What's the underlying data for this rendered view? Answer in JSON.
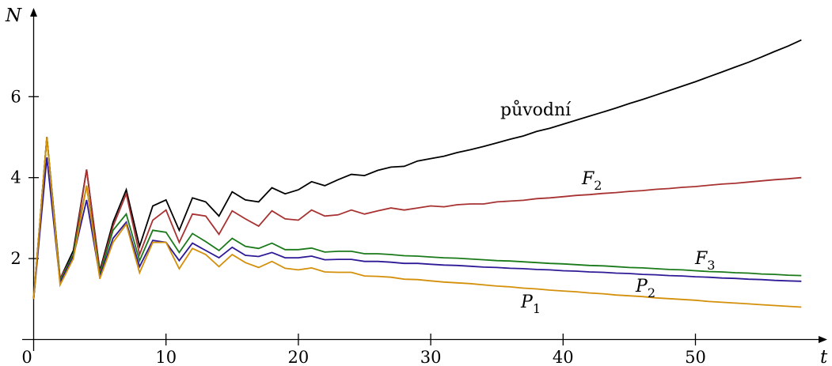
{
  "chart_data": {
    "type": "line",
    "xlabel": "t",
    "ylabel": "N",
    "xlim": [
      0,
      60
    ],
    "ylim": [
      0,
      8.2
    ],
    "x_ticks": [
      0,
      10,
      20,
      30,
      40,
      50
    ],
    "y_ticks": [
      2,
      4,
      6
    ],
    "x_tick_labels": [
      "0",
      "10",
      "20",
      "30",
      "40",
      "50"
    ],
    "y_tick_labels": [
      "2",
      "4",
      "6"
    ],
    "grid": false,
    "series": [
      {
        "name": "původní",
        "label_main": "původní",
        "label_sub": "",
        "label_italic": false,
        "color": "#000000",
        "x": [
          0,
          1,
          2,
          3,
          4,
          5,
          6,
          7,
          8,
          9,
          10,
          11,
          12,
          13,
          14,
          15,
          16,
          17,
          18,
          19,
          20,
          21,
          22,
          23,
          24,
          25,
          26,
          27,
          28,
          29,
          30,
          31,
          32,
          33,
          34,
          35,
          36,
          37,
          38,
          39,
          40,
          41,
          42,
          43,
          44,
          45,
          46,
          47,
          48,
          49,
          50,
          51,
          52,
          53,
          54,
          55,
          56,
          57,
          58
        ],
        "y": [
          1.0,
          5.0,
          1.5,
          2.2,
          4.2,
          1.7,
          2.9,
          3.7,
          2.3,
          3.3,
          3.45,
          2.7,
          3.5,
          3.4,
          3.05,
          3.65,
          3.45,
          3.4,
          3.75,
          3.6,
          3.7,
          3.9,
          3.8,
          3.95,
          4.08,
          4.05,
          4.18,
          4.26,
          4.28,
          4.41,
          4.47,
          4.53,
          4.62,
          4.69,
          4.77,
          4.86,
          4.95,
          5.03,
          5.14,
          5.22,
          5.32,
          5.42,
          5.52,
          5.62,
          5.72,
          5.83,
          5.93,
          6.04,
          6.15,
          6.26,
          6.37,
          6.49,
          6.61,
          6.73,
          6.85,
          6.98,
          7.12,
          7.25,
          7.4
        ]
      },
      {
        "name": "F2",
        "label_main": "F",
        "label_sub": "2",
        "label_italic": true,
        "color": "#a83232",
        "x": [
          0,
          1,
          2,
          3,
          4,
          5,
          6,
          7,
          8,
          9,
          10,
          11,
          12,
          13,
          14,
          15,
          16,
          17,
          18,
          19,
          20,
          21,
          22,
          23,
          24,
          25,
          26,
          27,
          28,
          29,
          30,
          31,
          32,
          33,
          34,
          35,
          36,
          37,
          38,
          39,
          40,
          41,
          42,
          43,
          44,
          45,
          46,
          47,
          48,
          49,
          50,
          51,
          52,
          53,
          54,
          55,
          56,
          57,
          58
        ],
        "y": [
          1.0,
          5.0,
          1.5,
          2.1,
          4.2,
          1.65,
          2.8,
          3.6,
          2.1,
          2.95,
          3.2,
          2.4,
          3.1,
          3.05,
          2.6,
          3.18,
          2.98,
          2.8,
          3.18,
          2.98,
          2.95,
          3.2,
          3.05,
          3.08,
          3.2,
          3.1,
          3.18,
          3.25,
          3.2,
          3.25,
          3.3,
          3.28,
          3.33,
          3.35,
          3.35,
          3.4,
          3.42,
          3.44,
          3.48,
          3.5,
          3.53,
          3.56,
          3.58,
          3.61,
          3.63,
          3.66,
          3.68,
          3.71,
          3.73,
          3.76,
          3.78,
          3.81,
          3.84,
          3.86,
          3.89,
          3.92,
          3.95,
          3.97,
          4.0
        ]
      },
      {
        "name": "F3",
        "label_main": "F",
        "label_sub": "3",
        "label_italic": true,
        "color": "#1a7a1a",
        "x": [
          0,
          1,
          2,
          3,
          4,
          5,
          6,
          7,
          8,
          9,
          10,
          11,
          12,
          13,
          14,
          15,
          16,
          17,
          18,
          19,
          20,
          21,
          22,
          23,
          24,
          25,
          26,
          27,
          28,
          29,
          30,
          31,
          32,
          33,
          34,
          35,
          36,
          37,
          38,
          39,
          40,
          41,
          42,
          43,
          44,
          45,
          46,
          47,
          48,
          49,
          50,
          51,
          52,
          53,
          54,
          55,
          56,
          57,
          58
        ],
        "y": [
          1.0,
          5.0,
          1.45,
          2.1,
          3.8,
          1.6,
          2.7,
          3.1,
          1.95,
          2.7,
          2.65,
          2.15,
          2.62,
          2.42,
          2.2,
          2.5,
          2.3,
          2.25,
          2.38,
          2.22,
          2.22,
          2.26,
          2.16,
          2.18,
          2.18,
          2.12,
          2.12,
          2.1,
          2.07,
          2.06,
          2.04,
          2.02,
          2.01,
          1.99,
          1.97,
          1.95,
          1.94,
          1.92,
          1.9,
          1.88,
          1.87,
          1.85,
          1.83,
          1.82,
          1.8,
          1.78,
          1.77,
          1.75,
          1.73,
          1.72,
          1.7,
          1.68,
          1.67,
          1.65,
          1.64,
          1.62,
          1.61,
          1.59,
          1.58
        ]
      },
      {
        "name": "P2",
        "label_main": "P",
        "label_sub": "2",
        "label_italic": true,
        "color": "#2d1a96",
        "x": [
          0,
          1,
          2,
          3,
          4,
          5,
          6,
          7,
          8,
          9,
          10,
          11,
          12,
          13,
          14,
          15,
          16,
          17,
          18,
          19,
          20,
          21,
          22,
          23,
          24,
          25,
          26,
          27,
          28,
          29,
          30,
          31,
          32,
          33,
          34,
          35,
          36,
          37,
          38,
          39,
          40,
          41,
          42,
          43,
          44,
          45,
          46,
          47,
          48,
          49,
          50,
          51,
          52,
          53,
          54,
          55,
          56,
          57,
          58
        ],
        "y": [
          1.0,
          4.5,
          1.4,
          2.05,
          3.45,
          1.55,
          2.5,
          2.9,
          1.8,
          2.45,
          2.4,
          1.95,
          2.38,
          2.2,
          2.02,
          2.28,
          2.08,
          2.05,
          2.15,
          2.02,
          2.02,
          2.06,
          1.97,
          1.98,
          1.98,
          1.93,
          1.93,
          1.91,
          1.88,
          1.88,
          1.86,
          1.84,
          1.83,
          1.81,
          1.79,
          1.78,
          1.76,
          1.75,
          1.73,
          1.72,
          1.7,
          1.69,
          1.67,
          1.66,
          1.64,
          1.63,
          1.61,
          1.6,
          1.58,
          1.57,
          1.55,
          1.54,
          1.52,
          1.51,
          1.49,
          1.48,
          1.46,
          1.45,
          1.44
        ]
      },
      {
        "name": "P1",
        "label_main": "P",
        "label_sub": "1",
        "label_italic": true,
        "color": "#d4900a",
        "x": [
          0,
          1,
          2,
          3,
          4,
          5,
          6,
          7,
          8,
          9,
          10,
          11,
          12,
          13,
          14,
          15,
          16,
          17,
          18,
          19,
          20,
          21,
          22,
          23,
          24,
          25,
          26,
          27,
          28,
          29,
          30,
          31,
          32,
          33,
          34,
          35,
          36,
          37,
          38,
          39,
          40,
          41,
          42,
          43,
          44,
          45,
          46,
          47,
          48,
          49,
          50,
          51,
          52,
          53,
          54,
          55,
          56,
          57,
          58
        ],
        "y": [
          1.0,
          5.0,
          1.35,
          2.0,
          3.8,
          1.5,
          2.4,
          2.85,
          1.65,
          2.4,
          2.4,
          1.75,
          2.25,
          2.1,
          1.8,
          2.1,
          1.9,
          1.78,
          1.93,
          1.76,
          1.72,
          1.77,
          1.67,
          1.66,
          1.66,
          1.57,
          1.56,
          1.54,
          1.49,
          1.48,
          1.45,
          1.42,
          1.4,
          1.38,
          1.35,
          1.32,
          1.3,
          1.27,
          1.25,
          1.22,
          1.2,
          1.18,
          1.15,
          1.13,
          1.1,
          1.08,
          1.06,
          1.03,
          1.01,
          0.99,
          0.97,
          0.94,
          0.92,
          0.9,
          0.88,
          0.86,
          0.84,
          0.82,
          0.8
        ]
      }
    ]
  }
}
